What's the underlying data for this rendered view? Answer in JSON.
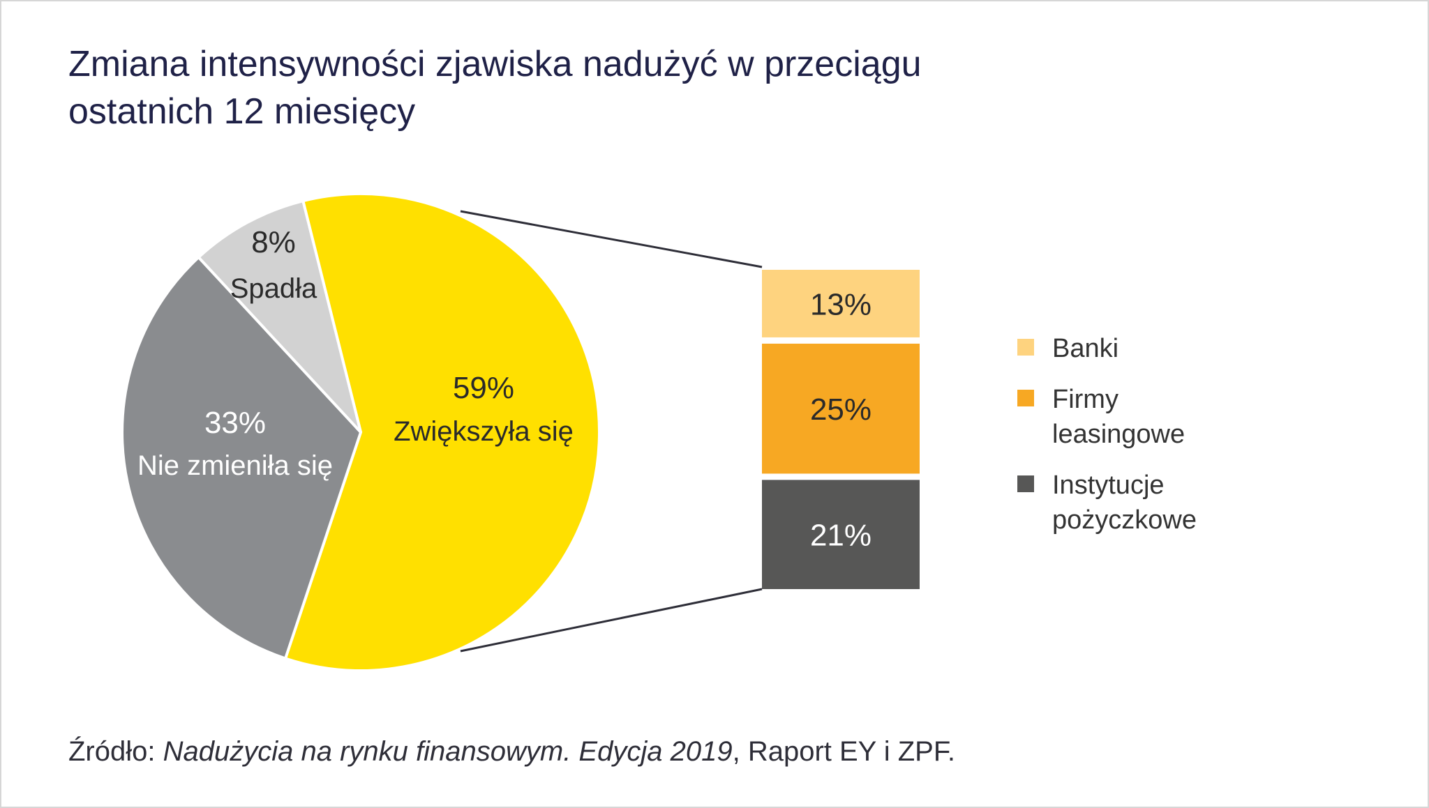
{
  "chart_data": {
    "type": "pie",
    "title": "Zmiana intensywności zjawiska nadużyć w przeciągu ostatnich 12 miesięcy",
    "title_lines": [
      "Zmiana intensywności zjawiska nadużyć w przeciągu",
      "ostatnich 12 miesięcy"
    ],
    "slices": [
      {
        "label": "Zwiększyła się",
        "value": 59,
        "value_label": "59%",
        "color": "#FFE000",
        "text_color": "#2a2a2a"
      },
      {
        "label": "Nie zmieniła się",
        "value": 33,
        "value_label": "33%",
        "color": "#8A8C8F",
        "text_color": "#ffffff"
      },
      {
        "label": "Spadła",
        "value": 8,
        "value_label": "8%",
        "color": "#D2D2D2",
        "text_color": "#2a2a2a"
      }
    ],
    "breakdown": {
      "of": "Zwiększyła się",
      "type": "stacked-bar",
      "segments": [
        {
          "label": "Banki",
          "value": 13,
          "value_label": "13%",
          "color": "#FED37F",
          "text_color": "#2a2a2a"
        },
        {
          "label": "Firmy leasingowe",
          "label_lines": [
            "Firmy",
            "leasingowe"
          ],
          "value": 25,
          "value_label": "25%",
          "color": "#F7A823",
          "text_color": "#2a2a2a"
        },
        {
          "label": "Instytucje pożyczkowe",
          "label_lines": [
            "Instytucje",
            "pożyczkowe"
          ],
          "value": 21,
          "value_label": "21%",
          "color": "#575756",
          "text_color": "#ffffff"
        }
      ]
    },
    "legend_position": "right"
  },
  "source": {
    "prefix": "Źródło: ",
    "italic": "Nadużycia na rynku finansowym. Edycja 2019",
    "suffix": ", Raport EY i ZPF."
  }
}
